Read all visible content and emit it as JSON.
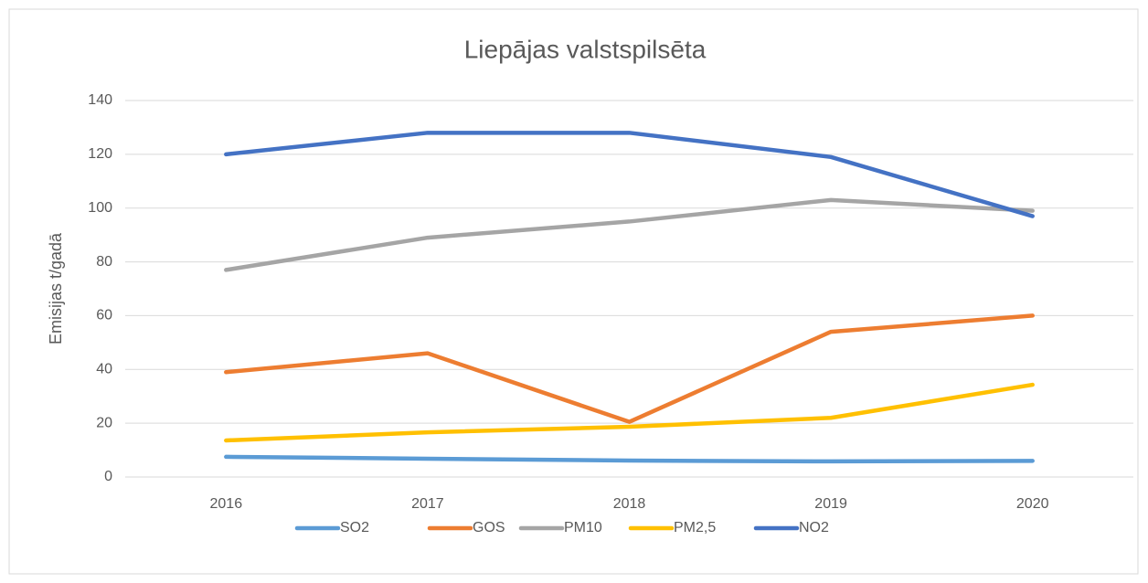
{
  "chart_data": {
    "type": "line",
    "title": "Liepājas valstspilsēta",
    "y_label": "Emisijas t/gadā",
    "categories": [
      "2016",
      "2017",
      "2018",
      "2019",
      "2020"
    ],
    "series": [
      {
        "name": "SO2",
        "color": "#5b9bd5",
        "values": [
          7.5,
          6.8,
          6.1,
          5.8,
          6
        ]
      },
      {
        "name": "GOS",
        "color": "#ed7d31",
        "values": [
          39,
          46,
          20.5,
          54,
          60
        ]
      },
      {
        "name": "PM10",
        "color": "#a5a5a5",
        "values": [
          77,
          89,
          95,
          103,
          99
        ]
      },
      {
        "name": "PM2,5",
        "color": "#ffc000",
        "values": [
          13.6,
          16.6,
          18.7,
          22,
          34.3
        ]
      },
      {
        "name": "NO2",
        "color": "#4472c4",
        "values": [
          120,
          128,
          128,
          119,
          97
        ]
      }
    ],
    "ylim": [
      0,
      140
    ],
    "yticks": [
      0,
      20,
      40,
      60,
      80,
      100,
      120,
      140
    ],
    "grid": true,
    "legend": "bottom"
  }
}
